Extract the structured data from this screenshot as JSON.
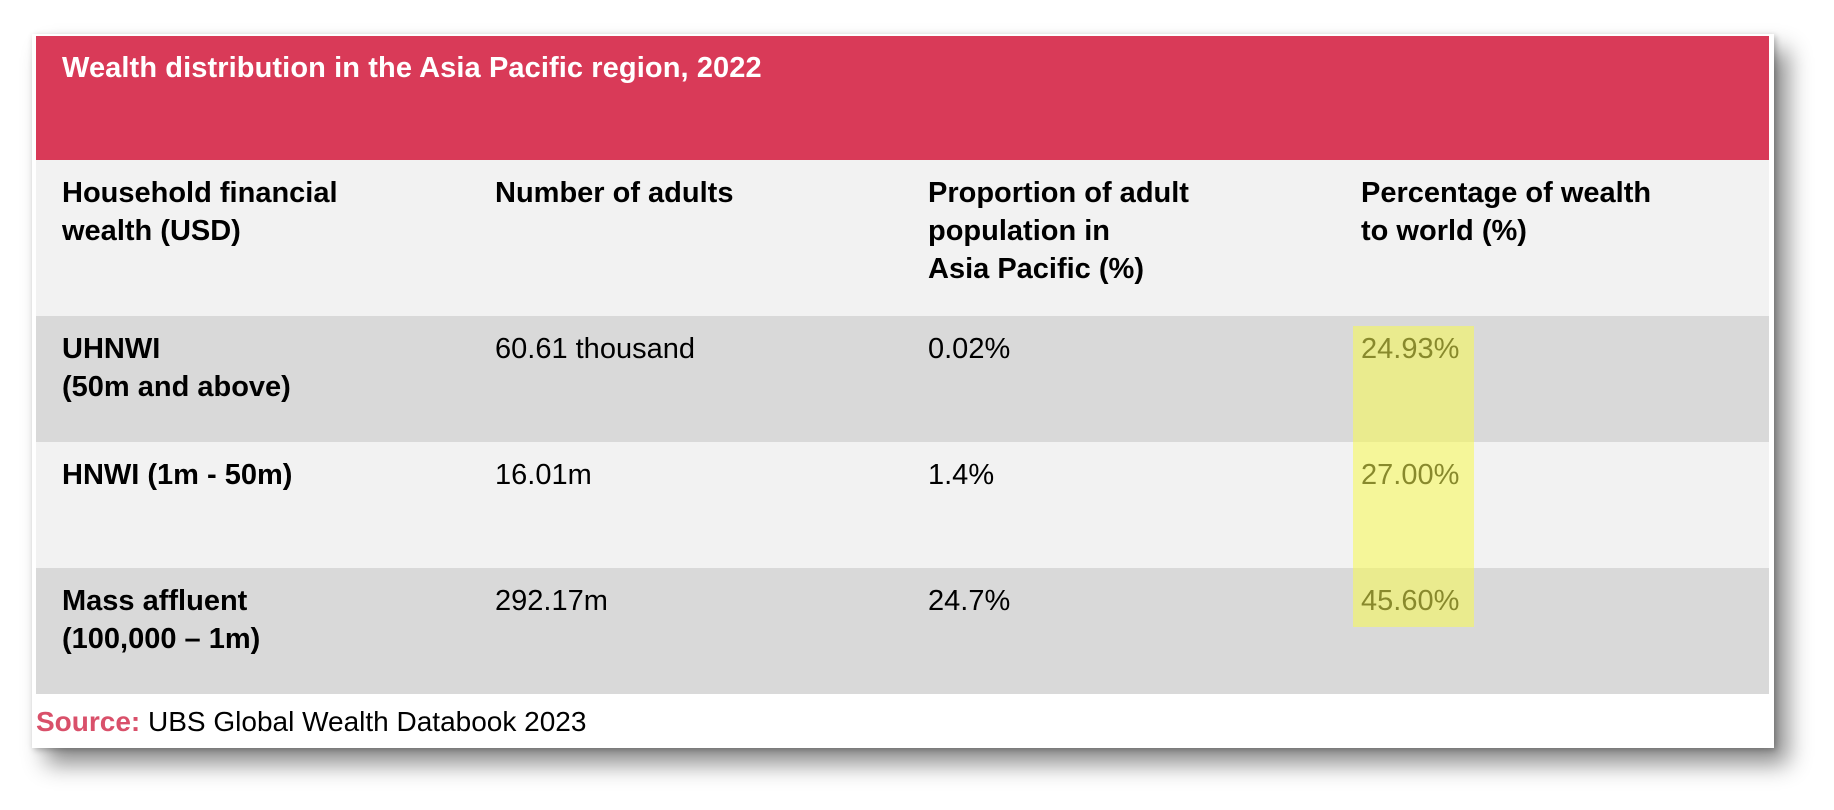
{
  "title": "Wealth distribution in the Asia Pacific region, 2022",
  "columns": [
    "Household financial\nwealth (USD)",
    "Number of adults",
    "Proportion of adult\npopulation in\nAsia Pacific (%)",
    "Percentage of wealth\nto world (%)"
  ],
  "rows": [
    {
      "category": "UHNWI\n(50m and above)",
      "adults": "60.61 thousand",
      "proportion": "0.02%",
      "wealth_share": "24.93%"
    },
    {
      "category": "HNWI (1m - 50m)",
      "adults": "16.01m",
      "proportion": "1.4%",
      "wealth_share": "27.00%"
    },
    {
      "category": "Mass affluent\n(100,000 – 1m)",
      "adults": "292.17m",
      "proportion": "24.7%",
      "wealth_share": "45.60%"
    }
  ],
  "source": {
    "label": "Source:",
    "text": "UBS Global Wealth Databook 2023"
  },
  "colors": {
    "header_bg": "#d93a58",
    "source_label": "#d9506a",
    "highlight": "#f8fa50"
  }
}
